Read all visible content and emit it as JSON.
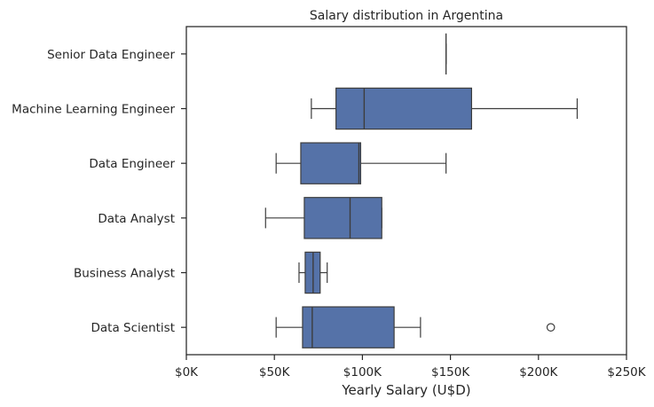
{
  "chart_data": {
    "type": "boxplot",
    "orientation": "horizontal",
    "title": "Salary distribution in Argentina",
    "xlabel": "Yearly Salary (U$D)",
    "ylabel": "",
    "xlim": [
      0,
      250000
    ],
    "x_ticks": [
      0,
      50000,
      100000,
      150000,
      200000,
      250000
    ],
    "x_tick_labels": [
      "$0K",
      "$50K",
      "$100K",
      "$150K",
      "$200K",
      "$250K"
    ],
    "grid": false,
    "box_color": "#5572a8",
    "line_color": "#3d3d3d",
    "categories": [
      "Senior Data Engineer",
      "Machine Learning Engineer",
      "Data Engineer",
      "Data Analyst",
      "Business Analyst",
      "Data Scientist"
    ],
    "boxes": [
      {
        "whisker_low": 147500,
        "q1": 147500,
        "median": 147500,
        "q3": 147500,
        "whisker_high": 147500,
        "outliers": []
      },
      {
        "whisker_low": 71000,
        "q1": 85000,
        "median": 101000,
        "q3": 162000,
        "whisker_high": 222000,
        "outliers": []
      },
      {
        "whisker_low": 51000,
        "q1": 65000,
        "median": 98000,
        "q3": 99000,
        "whisker_high": 147500,
        "outliers": []
      },
      {
        "whisker_low": 45000,
        "q1": 67000,
        "median": 93000,
        "q3": 111000,
        "whisker_high": 111000,
        "outliers": []
      },
      {
        "whisker_low": 64000,
        "q1": 67500,
        "median": 72000,
        "q3": 76000,
        "whisker_high": 80000,
        "outliers": []
      },
      {
        "whisker_low": 51000,
        "q1": 66000,
        "median": 71500,
        "q3": 118000,
        "whisker_high": 133000,
        "outliers": [
          207000
        ]
      }
    ]
  }
}
